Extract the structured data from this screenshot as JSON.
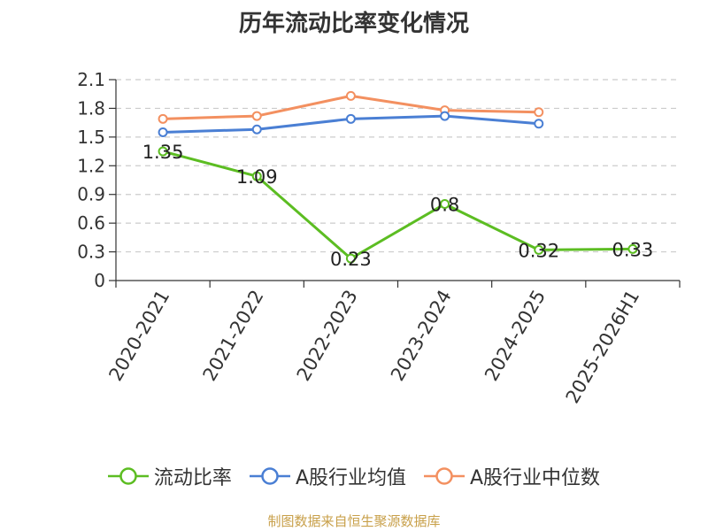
{
  "title": "历年流动比率变化情况",
  "source_note": "制图数据来自恒生聚源数据库",
  "chart_data": {
    "type": "line",
    "categories": [
      "2020-2021",
      "2021-2022",
      "2022-2023",
      "2023-2024",
      "2024-2025",
      "2025-2026H1"
    ],
    "y_ticks": [
      "0",
      "0.3",
      "0.6",
      "0.9",
      "1.2",
      "1.5",
      "1.8",
      "2.1"
    ],
    "ylim": [
      0,
      2.1
    ],
    "grid": true,
    "legend_position": "bottom",
    "series": [
      {
        "name": "流动比率",
        "color": "#5cbd22",
        "values": [
          1.35,
          1.09,
          0.23,
          0.8,
          0.32,
          0.33
        ],
        "labels": [
          "1.35",
          "1.09",
          "0.23",
          "0.8",
          "0.32",
          "0.33"
        ]
      },
      {
        "name": "A股行业均值",
        "color": "#4a7fd4",
        "values": [
          1.55,
          1.58,
          1.69,
          1.72,
          1.64,
          null
        ]
      },
      {
        "name": "A股行业中位数",
        "color": "#f39060",
        "values": [
          1.69,
          1.72,
          1.93,
          1.78,
          1.76,
          null
        ]
      }
    ]
  }
}
